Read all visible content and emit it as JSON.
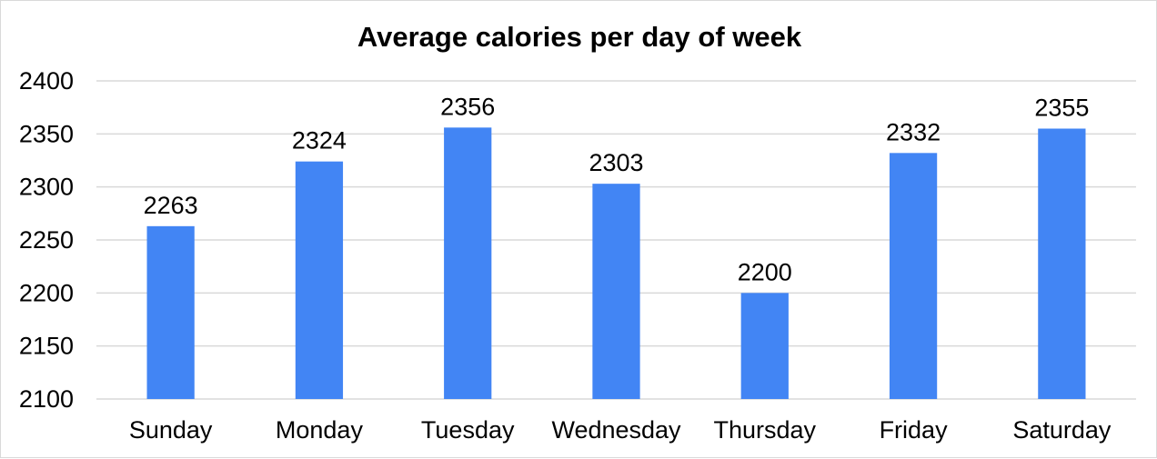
{
  "chart_data": {
    "type": "bar",
    "title": "Average calories per day of week",
    "xlabel": "",
    "ylabel": "",
    "categories": [
      "Sunday",
      "Monday",
      "Tuesday",
      "Wednesday",
      "Thursday",
      "Friday",
      "Saturday"
    ],
    "values": [
      2263,
      2324,
      2356,
      2303,
      2200,
      2332,
      2355
    ],
    "data_labels": [
      "2263",
      "2324",
      "2356",
      "2303",
      "2200",
      "2332",
      "2355"
    ],
    "ylim": [
      2100,
      2400
    ],
    "yticks": [
      2100,
      2150,
      2200,
      2250,
      2300,
      2350,
      2400
    ],
    "ytick_labels": [
      "2100",
      "2150",
      "2200",
      "2250",
      "2300",
      "2350",
      "2400"
    ],
    "grid": true,
    "legend": "none",
    "colors": {
      "bar": "#4285f4",
      "grid": "#d9d9d9",
      "text": "#000000"
    }
  }
}
